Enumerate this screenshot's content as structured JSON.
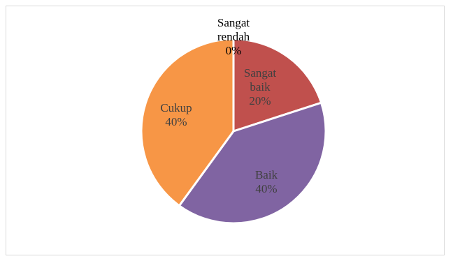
{
  "chart_data": {
    "type": "pie",
    "title": "",
    "slices": [
      {
        "label": "Sangat baik",
        "value": 20,
        "percent_text": "20%",
        "color": "#c0504d"
      },
      {
        "label": "Baik",
        "value": 40,
        "percent_text": "40%",
        "color": "#8064a2"
      },
      {
        "label": "Cukup",
        "value": 40,
        "percent_text": "40%",
        "color": "#f79646"
      },
      {
        "label": "Sangat rendah",
        "value": 0,
        "percent_text": "0%",
        "color": "#4f81bd"
      }
    ],
    "start_angle_deg": 0,
    "direction": "clockwise",
    "legend": "none",
    "data_labels": "category-and-percent"
  }
}
